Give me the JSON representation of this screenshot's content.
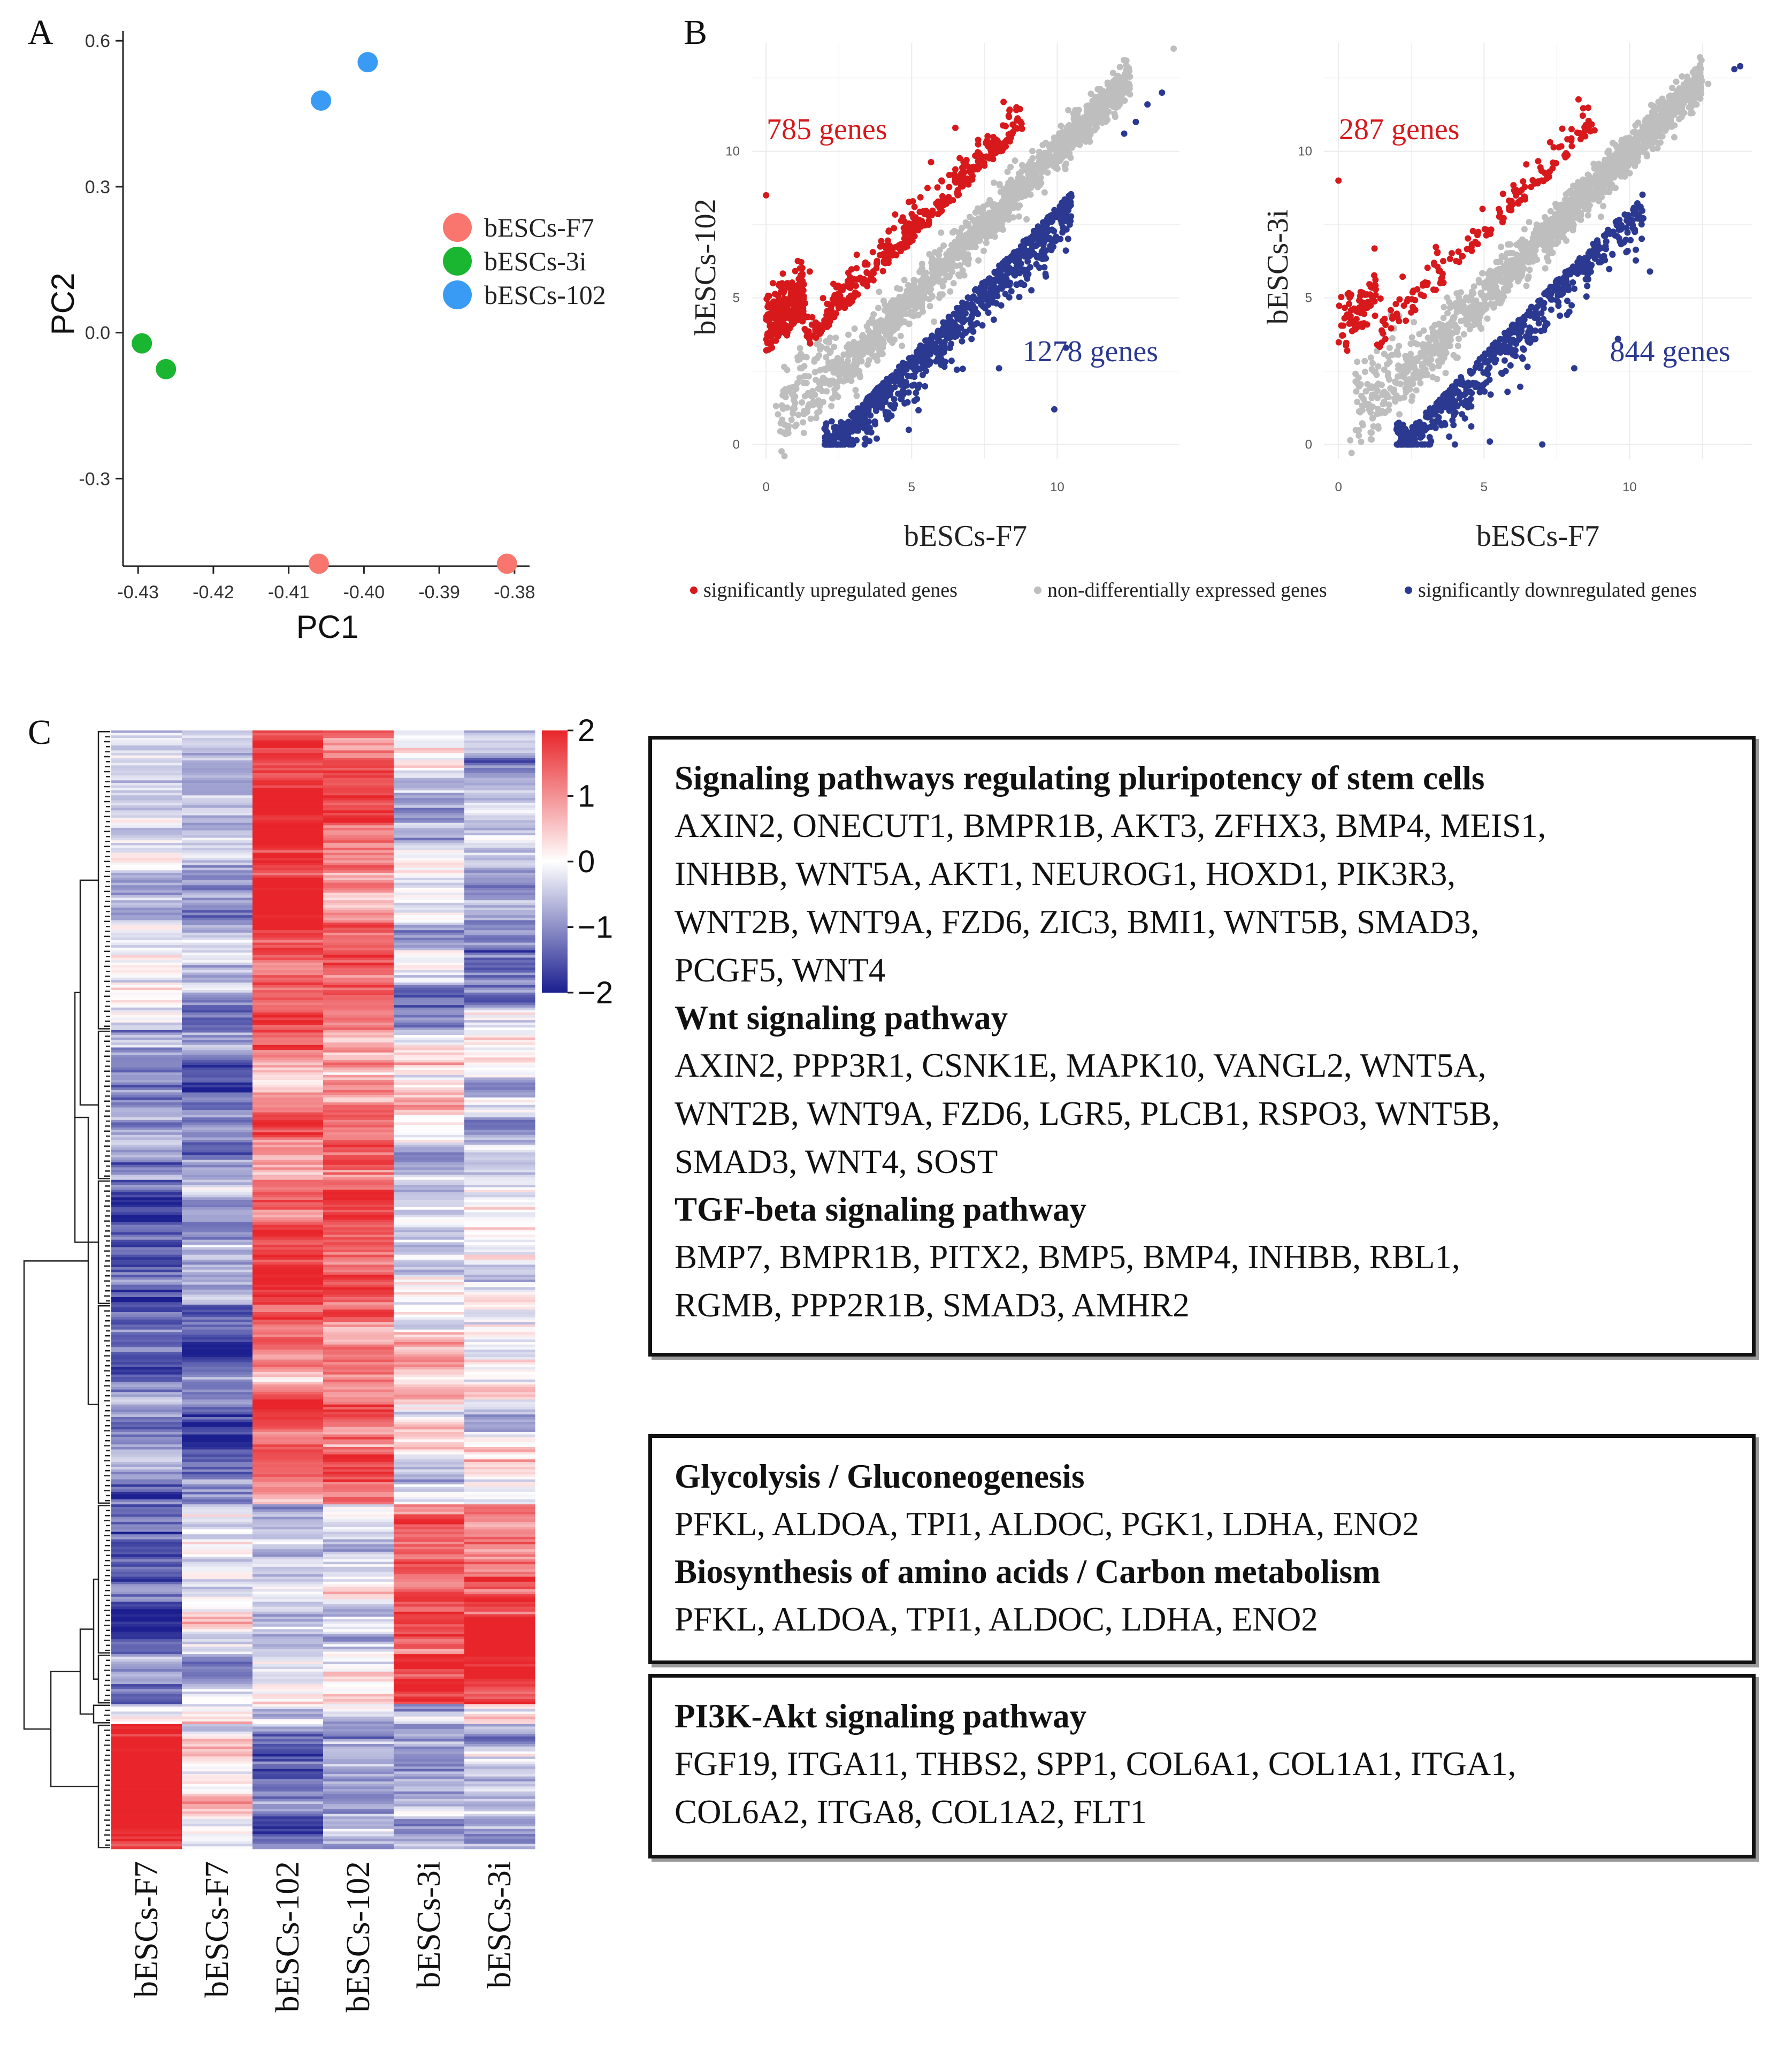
{
  "panel_labels": {
    "a": "A",
    "b": "B",
    "c": "C"
  },
  "colors": {
    "f7": "#F8766D",
    "threei": "#1AB631",
    "p102": "#3A9BF5",
    "up": "#D7191C",
    "down": "#2B3990",
    "nonde": "#BEBEBE",
    "heat_high": "#E8252A",
    "heat_mid": "#FFFFFF",
    "heat_low": "#1B1F8F"
  },
  "chart_data": [
    {
      "id": "A",
      "type": "scatter",
      "title": "",
      "xlabel": "PC1",
      "ylabel": "PC2",
      "xlim": [
        -0.432,
        -0.378
      ],
      "ylim": [
        -0.48,
        0.62
      ],
      "xticks": [
        -0.43,
        -0.42,
        -0.41,
        -0.4,
        -0.39,
        -0.38
      ],
      "xtick_labels": [
        "-0.43",
        "-0.42",
        "-0.41",
        "-0.40",
        "-0.39",
        "-0.38"
      ],
      "yticks": [
        -0.3,
        0.0,
        0.3,
        0.6
      ],
      "ytick_labels": [
        "-0.3",
        "0.0",
        "0.3",
        "0.6"
      ],
      "legend_position": "right",
      "series": [
        {
          "name": "bESCs-F7",
          "color_key": "f7",
          "points": [
            [
              -0.406,
              -0.475
            ],
            [
              -0.381,
              -0.475
            ]
          ]
        },
        {
          "name": "bESCs-3i",
          "color_key": "threei",
          "points": [
            [
              -0.4295,
              -0.022
            ],
            [
              -0.4263,
              -0.075
            ]
          ]
        },
        {
          "name": "bESCs-102",
          "color_key": "p102",
          "points": [
            [
              -0.4057,
              0.477
            ],
            [
              -0.3995,
              0.556
            ]
          ]
        }
      ]
    },
    {
      "id": "B1",
      "type": "scatter",
      "xlabel": "bESCs-F7",
      "ylabel": "bESCs-102",
      "xlim": [
        -0.5,
        14.2
      ],
      "ylim": [
        -0.5,
        13.7
      ],
      "xticks": [
        0,
        5,
        10
      ],
      "yticks": [
        0,
        5,
        10
      ],
      "annotations": [
        {
          "text": "785 genes",
          "color_key": "up",
          "position": "upper-left"
        },
        {
          "text": "1278 genes",
          "color_key": "down",
          "position": "lower-right"
        }
      ],
      "series": [
        {
          "name": "significantly upregulated genes",
          "color_key": "up",
          "count": 785,
          "shift": 1.9,
          "sample_points": [
            [
              0,
              8.5
            ],
            [
              0.2,
              3.3
            ],
            [
              1.5,
              5.9
            ],
            [
              6.5,
              10.8
            ],
            [
              8.6,
              11.5
            ]
          ]
        },
        {
          "name": "significantly downregulated genes",
          "color_key": "down",
          "count": 1278,
          "shift": -1.9,
          "sample_points": [
            [
              8.0,
              2.6
            ],
            [
              9.9,
              1.2
            ],
            [
              10.3,
              3.3
            ],
            [
              12.7,
              11.0
            ],
            [
              13.1,
              11.6
            ],
            [
              13.6,
              12.0
            ],
            [
              12.3,
              10.6
            ],
            [
              4.9,
              0.5
            ],
            [
              3.8,
              0.2
            ]
          ]
        },
        {
          "name": "non-differentially expressed genes",
          "color_key": "nonde",
          "sample_points": [
            [
              14.0,
              13.5
            ],
            [
              0.7,
              1.8
            ],
            [
              1.8,
              1.5
            ]
          ]
        }
      ]
    },
    {
      "id": "B2",
      "type": "scatter",
      "xlabel": "bESCs-F7",
      "ylabel": "bESCs-3i",
      "xlim": [
        -0.5,
        14.2
      ],
      "ylim": [
        -0.5,
        13.7
      ],
      "xticks": [
        0,
        5,
        10
      ],
      "yticks": [
        0,
        5,
        10
      ],
      "annotations": [
        {
          "text": "287 genes",
          "color_key": "up",
          "position": "upper-left"
        },
        {
          "text": "844 genes",
          "color_key": "down",
          "position": "lower-right"
        }
      ],
      "series": [
        {
          "name": "significantly upregulated genes",
          "color_key": "up",
          "count": 287,
          "shift": 1.9,
          "sample_points": [
            [
              0,
              9.0
            ],
            [
              0.3,
              3.2
            ],
            [
              8.5,
              10.8
            ],
            [
              3.5,
              5.5
            ]
          ]
        },
        {
          "name": "significantly downregulated genes",
          "color_key": "down",
          "count": 844,
          "shift": -1.9,
          "sample_points": [
            [
              7.0,
              0
            ],
            [
              4.0,
              0
            ],
            [
              5.2,
              0.1
            ],
            [
              8.1,
              2.6
            ],
            [
              9.6,
              3.6
            ],
            [
              10.7,
              5.9
            ],
            [
              13.6,
              12.8
            ],
            [
              13.8,
              12.9
            ]
          ]
        },
        {
          "name": "non-differentially expressed genes",
          "color_key": "nonde",
          "sample_points": [
            [
              11.7,
              11.1
            ],
            [
              12.3,
              11.6
            ],
            [
              12.7,
              12.3
            ]
          ]
        }
      ]
    },
    {
      "id": "C",
      "type": "heatmap",
      "columns": [
        "bESCs-F7",
        "bESCs-F7",
        "bESCs-102",
        "bESCs-102",
        "bESCs-3i",
        "bESCs-3i"
      ],
      "colorbar": {
        "min": -2,
        "max": 2,
        "ticks": [
          2,
          1,
          0,
          -1,
          -2
        ],
        "tick_labels": [
          "2",
          "1",
          "0",
          "−1",
          "−2"
        ]
      },
      "clusters": [
        {
          "rows": 120,
          "means": [
            -0.55,
            -0.9,
            1.7,
            1.35,
            -0.55,
            -0.7
          ]
        },
        {
          "rows": 60,
          "means": [
            -1.2,
            -1.1,
            1.4,
            1.2,
            -0.15,
            -0.2
          ]
        },
        {
          "rows": 50,
          "means": [
            -1.3,
            -0.6,
            1.3,
            1.45,
            -0.3,
            -0.25
          ]
        },
        {
          "rows": 80,
          "means": [
            -1.0,
            -1.45,
            1.3,
            1.25,
            0.0,
            0.05
          ]
        },
        {
          "rows": 60,
          "means": [
            -1.6,
            -0.3,
            -0.4,
            -0.5,
            1.4,
            1.5
          ]
        },
        {
          "rows": 20,
          "means": [
            -0.9,
            -0.5,
            -0.3,
            -0.2,
            1.9,
            1.9
          ]
        },
        {
          "rows": 8,
          "means": [
            -0.3,
            0.1,
            -0.4,
            -0.2,
            -0.4,
            -0.3
          ]
        },
        {
          "rows": 50,
          "means": [
            1.9,
            0.15,
            -0.7,
            -0.75,
            -0.8,
            -0.8
          ]
        }
      ]
    }
  ],
  "legend_b": [
    {
      "label": "significantly upregulated genes",
      "color_key": "up"
    },
    {
      "label": "non-differentially expressed genes",
      "color_key": "nonde"
    },
    {
      "label": "significantly downregulated genes",
      "color_key": "down"
    }
  ],
  "boxes": [
    {
      "sections": [
        {
          "title": "Signaling pathways  regulating pluripotency  of stem cells",
          "lines": [
            "AXIN2, ONECUT1, BMPR1B, AKT3, ZFHX3, BMP4, MEIS1,",
            "INHBB, WNT5A, AKT1, NEUROG1, HOXD1, PIK3R3,",
            "WNT2B, WNT9A, FZD6, ZIC3, BMI1, WNT5B, SMAD3,",
            "PCGF5, WNT4"
          ]
        },
        {
          "title": "Wnt signaling pathway",
          "lines": [
            "AXIN2, PPP3R1, CSNK1E, MAPK10, VANGL2, WNT5A,",
            "WNT2B, WNT9A, FZD6, LGR5, PLCB1, RSPO3, WNT5B,",
            "SMAD3, WNT4, SOST"
          ]
        },
        {
          "title": "TGF-beta  signaling pathway",
          "lines": [
            "BMP7, BMPR1B, PITX2, BMP5, BMP4, INHBB, RBL1,",
            "RGMB, PPP2R1B, SMAD3, AMHR2"
          ]
        }
      ]
    },
    {
      "sections": [
        {
          "title": "Glycolysis / Gluconeogenesis",
          "lines": [
            "PFKL, ALDOA, TPI1, ALDOC, PGK1, LDHA, ENO2"
          ]
        },
        {
          "title": "Biosynthesis of amino  acids / Carbon  metabolism",
          "lines": [
            "PFKL, ALDOA, TPI1, ALDOC, LDHA, ENO2"
          ]
        }
      ]
    },
    {
      "sections": [
        {
          "title": "PI3K-Akt  signaling pathway",
          "lines": [
            "FGF19, ITGA11, THBS2, SPP1, COL6A1, COL1A1, ITGA1,",
            "COL6A2, ITGA8,  COL1A2, FLT1"
          ]
        }
      ]
    }
  ]
}
